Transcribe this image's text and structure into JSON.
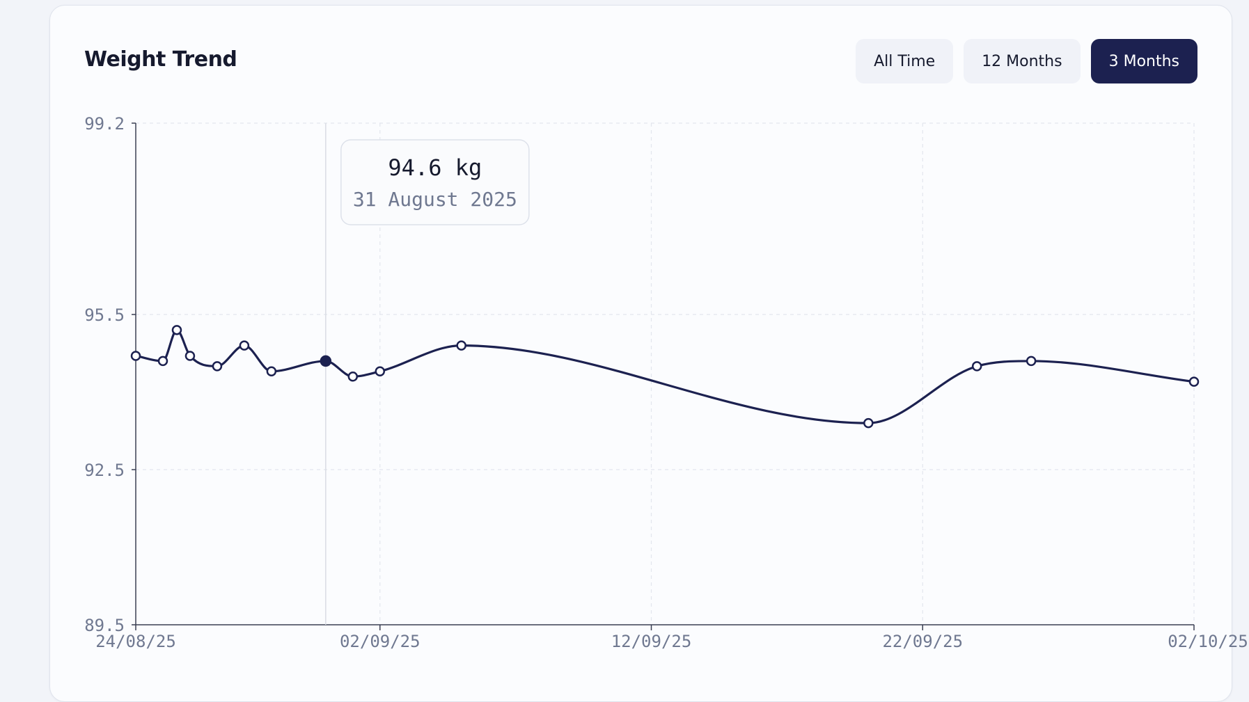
{
  "card": {
    "title": "Weight Trend"
  },
  "range_buttons": [
    {
      "label": "All Time",
      "active": false
    },
    {
      "label": "12 Months",
      "active": false
    },
    {
      "label": "3 Months",
      "active": true
    }
  ],
  "tooltip": {
    "value": "94.6 kg",
    "date": "31 August 2025"
  },
  "colors": {
    "line": "#1c2150",
    "axis": "#3a3f52",
    "grid": "#e3e6ee",
    "tick_label": "#6f7890",
    "active_button": "#1c2150"
  },
  "chart_data": {
    "type": "line",
    "title": "",
    "xlabel": "",
    "ylabel": "",
    "unit": "kg",
    "xlim": [
      "2025-08-24",
      "2025-10-02"
    ],
    "ylim": [
      89.5,
      99.2
    ],
    "yticks": [
      "99.2",
      "95.5",
      "92.5",
      "89.5"
    ],
    "xticks": [
      {
        "date": "2025-08-24",
        "label": "24/08/25"
      },
      {
        "date": "2025-09-02",
        "label": "02/09/25"
      },
      {
        "date": "2025-09-12",
        "label": "12/09/25"
      },
      {
        "date": "2025-09-22",
        "label": "22/09/25"
      },
      {
        "date": "2025-10-02",
        "label": "02/10/25"
      }
    ],
    "grid": true,
    "highlight_date": "2025-08-31",
    "series": [
      {
        "points": [
          {
            "date": "2025-08-24",
            "value": 94.7
          },
          {
            "date": "2025-08-25",
            "value": 94.6
          },
          {
            "date": "2025-08-25",
            "value": 95.2
          },
          {
            "date": "2025-08-26",
            "value": 94.7
          },
          {
            "date": "2025-08-27",
            "value": 94.5
          },
          {
            "date": "2025-08-28",
            "value": 94.9
          },
          {
            "date": "2025-08-29",
            "value": 94.4
          },
          {
            "date": "2025-08-31",
            "value": 94.6
          },
          {
            "date": "2025-09-01",
            "value": 94.3
          },
          {
            "date": "2025-09-02",
            "value": 94.4
          },
          {
            "date": "2025-09-05",
            "value": 94.9
          },
          {
            "date": "2025-09-20",
            "value": 93.4
          },
          {
            "date": "2025-09-24",
            "value": 94.5
          },
          {
            "date": "2025-09-26",
            "value": 94.6
          },
          {
            "date": "2025-10-02",
            "value": 94.2
          }
        ]
      }
    ]
  }
}
